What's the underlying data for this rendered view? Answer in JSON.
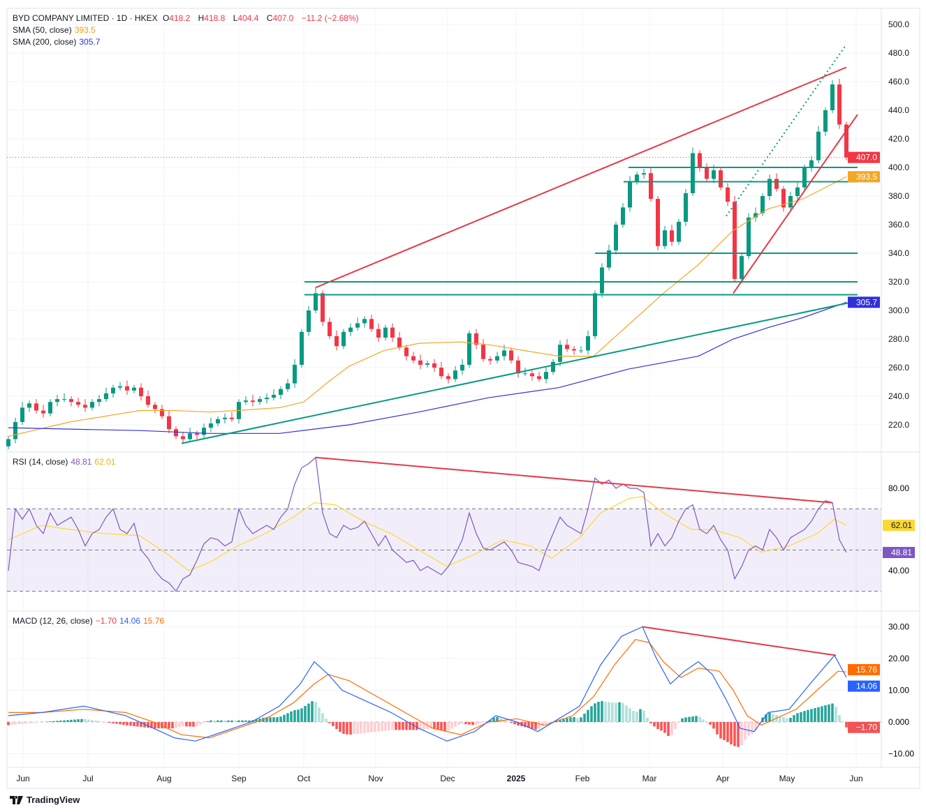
{
  "header": {
    "title": "BYD COMPANY LIMITED · 1D · HKEX",
    "o_label": "O",
    "o": "418.2",
    "h_label": "H",
    "h": "418.8",
    "l_label": "L",
    "l": "404.4",
    "c_label": "C",
    "c": "407.0",
    "change": "−11.2 (−2.68%)"
  },
  "sma50": {
    "label": "SMA (50, close)",
    "value": "393.5"
  },
  "sma200": {
    "label": "SMA (200, close)",
    "value": "305.7"
  },
  "rsi_legend": {
    "label": "RSI (14, close)",
    "value": "48.81",
    "signal": "62.01"
  },
  "macd_legend": {
    "label": "MACD (12, 26, close)",
    "hist": "−1.70",
    "macd": "14.06",
    "signal": "15.76"
  },
  "branding": "TradingView",
  "colors": {
    "up": "#089981",
    "down": "#f23645",
    "sma50": "#f5a623",
    "sma200": "#3131d8",
    "rsi": "#7e57c2",
    "rsi_signal": "#fdd835",
    "macd": "#2962ff",
    "macd_signal": "#ff6d00",
    "drawing_red": "#e53946",
    "drawing_green": "#089981"
  },
  "chart_data": [
    {
      "type": "candlestick",
      "title": "BYD COMPANY LIMITED · 1D · HKEX",
      "x_unit": "bar index",
      "x_ticks": [
        {
          "i": 2.1,
          "label": "Jun"
        },
        {
          "i": 11.4,
          "label": "Jul"
        },
        {
          "i": 22.3,
          "label": "Aug"
        },
        {
          "i": 33,
          "label": "Sep"
        },
        {
          "i": 42.3,
          "label": "Oct"
        },
        {
          "i": 52.6,
          "label": "Nov"
        },
        {
          "i": 62.9,
          "label": "Dec"
        },
        {
          "i": 72.7,
          "label": "2025"
        },
        {
          "i": 82.2,
          "label": "Feb"
        },
        {
          "i": 91.8,
          "label": "Mar"
        },
        {
          "i": 102.3,
          "label": "Apr"
        },
        {
          "i": 111.5,
          "label": "May"
        },
        {
          "i": 121.4,
          "label": "Jun"
        }
      ],
      "y_ticks": [
        "500.0",
        "480.0",
        "460.0",
        "440.0",
        "420.0",
        "400.0",
        "380.0",
        "360.0",
        "340.0",
        "320.0",
        "300.0",
        "280.0",
        "260.0",
        "240.0",
        "220.0"
      ],
      "ylim": [
        205,
        510
      ],
      "closes": [
        210,
        222,
        232,
        235,
        230,
        228,
        236,
        238,
        238,
        236,
        234,
        232,
        236,
        238,
        242,
        246,
        247,
        244,
        246,
        240,
        234,
        231,
        226,
        217,
        212,
        210,
        214,
        213,
        218,
        221,
        224,
        225,
        224,
        236,
        237,
        236,
        238,
        239,
        241,
        245,
        249,
        262,
        285,
        300,
        312,
        292,
        282,
        275,
        285,
        288,
        291,
        294,
        287,
        281,
        288,
        281,
        274,
        268,
        265,
        262,
        263,
        260,
        254,
        252,
        258,
        262,
        284,
        276,
        266,
        265,
        268,
        272,
        265,
        256,
        256,
        254,
        252,
        257,
        264,
        276,
        273,
        272,
        272,
        282,
        312,
        330,
        342,
        360,
        372,
        390,
        395,
        396,
        378,
        345,
        356,
        348,
        362,
        382,
        410,
        400,
        392,
        398,
        386,
        376,
        322,
        338,
        365,
        368,
        380,
        392,
        385,
        372,
        380,
        386,
        400,
        405,
        425,
        440,
        458,
        430,
        407
      ],
      "sma50": [
        [
          0,
          212
        ],
        [
          8.8,
          222
        ],
        [
          18.8,
          230
        ],
        [
          23.8,
          230
        ],
        [
          28.8,
          229
        ],
        [
          32.8,
          230
        ],
        [
          38.8,
          232
        ],
        [
          42.3,
          236
        ],
        [
          45.8,
          250
        ],
        [
          48.8,
          261
        ],
        [
          53.8,
          272
        ],
        [
          58.8,
          277
        ],
        [
          64.8,
          278
        ],
        [
          68.8,
          276
        ],
        [
          73.8,
          272
        ],
        [
          78.8,
          268
        ],
        [
          83.8,
          268
        ],
        [
          88.8,
          290
        ],
        [
          93.8,
          312
        ],
        [
          98.8,
          332
        ],
        [
          103.8,
          356
        ],
        [
          108.8,
          371
        ],
        [
          113.8,
          378
        ],
        [
          117.8,
          388
        ],
        [
          120,
          393.5
        ]
      ],
      "sma200": [
        [
          0,
          218
        ],
        [
          8.8,
          217
        ],
        [
          18.8,
          216
        ],
        [
          28.8,
          214
        ],
        [
          38.8,
          214
        ],
        [
          43.8,
          217
        ],
        [
          48.8,
          220
        ],
        [
          58.8,
          229
        ],
        [
          68.8,
          239
        ],
        [
          78.8,
          246
        ],
        [
          88.8,
          259
        ],
        [
          98.8,
          268
        ],
        [
          103.8,
          280
        ],
        [
          108.8,
          288
        ],
        [
          113.8,
          295
        ],
        [
          120,
          305.7
        ]
      ],
      "last_price": 407.0,
      "price_tags": [
        {
          "value": 407.0,
          "label": "407.0",
          "color": "#f23645"
        },
        {
          "value": 393.5,
          "label": "393.5",
          "color": "#f5a623"
        },
        {
          "value": 305.7,
          "label": "305.7",
          "color": "#3131d8"
        }
      ],
      "drawings": [
        {
          "kind": "trend",
          "color": "red",
          "from": [
            44,
            316
          ],
          "to": [
            120,
            470
          ]
        },
        {
          "kind": "trend",
          "color": "red",
          "from": [
            103.8,
            312
          ],
          "to": [
            121.6,
            437
          ]
        },
        {
          "kind": "trend-dotted",
          "color": "green",
          "from": [
            102.8,
            366
          ],
          "to": [
            120,
            486
          ]
        },
        {
          "kind": "trend",
          "color": "green",
          "from": [
            24.8,
            207
          ],
          "to": [
            122,
            307
          ]
        },
        {
          "kind": "horizontal",
          "color": "green",
          "from": [
            88.8,
            400
          ],
          "to": [
            121.6,
            400
          ]
        },
        {
          "kind": "horizontal",
          "color": "green",
          "from": [
            88.1,
            390
          ],
          "to": [
            121.6,
            390
          ]
        },
        {
          "kind": "horizontal",
          "color": "green",
          "from": [
            84,
            340
          ],
          "to": [
            121.6,
            340
          ]
        },
        {
          "kind": "horizontal",
          "color": "green",
          "from": [
            42.4,
            320
          ],
          "to": [
            121.6,
            320
          ]
        },
        {
          "kind": "horizontal",
          "color": "green",
          "from": [
            42.4,
            311
          ],
          "to": [
            121.6,
            311
          ]
        }
      ]
    },
    {
      "type": "line",
      "title": "RSI (14, close)",
      "ylim": [
        27,
        98
      ],
      "bands": [
        30,
        50,
        70
      ],
      "y_ticks": [
        "80.00",
        "40.00"
      ],
      "rsi": [
        40,
        70,
        65,
        70,
        62,
        58,
        68,
        62,
        64,
        66,
        60,
        52,
        58,
        60,
        66,
        70,
        60,
        58,
        63,
        50,
        46,
        40,
        36,
        34,
        30,
        36,
        38,
        45,
        53,
        56,
        55,
        52,
        54,
        70,
        62,
        58,
        60,
        62,
        60,
        66,
        70,
        82,
        90,
        92,
        95,
        68,
        58,
        56,
        62,
        60,
        61,
        64,
        58,
        52,
        57,
        50,
        47,
        44,
        45,
        40,
        42,
        40,
        38,
        42,
        48,
        55,
        68,
        58,
        51,
        50,
        52,
        54,
        50,
        44,
        43,
        42,
        40,
        50,
        58,
        66,
        62,
        60,
        58,
        70,
        85,
        82,
        84,
        80,
        82,
        80,
        80,
        78,
        52,
        58,
        52,
        56,
        64,
        70,
        72,
        60,
        58,
        62,
        55,
        50,
        36,
        42,
        50,
        52,
        50,
        60,
        56,
        50,
        56,
        58,
        60,
        64,
        70,
        74,
        73,
        55,
        48.81
      ],
      "signal": [
        [
          0,
          55
        ],
        [
          4.8,
          62
        ],
        [
          8.8,
          60
        ],
        [
          13.8,
          58
        ],
        [
          18.8,
          57
        ],
        [
          22.8,
          48
        ],
        [
          25.8,
          40
        ],
        [
          28.8,
          44
        ],
        [
          32.8,
          52
        ],
        [
          36.8,
          58
        ],
        [
          40.8,
          66
        ],
        [
          43.8,
          73
        ],
        [
          46.8,
          72
        ],
        [
          50.8,
          64
        ],
        [
          54.8,
          58
        ],
        [
          58.8,
          50
        ],
        [
          62.8,
          42
        ],
        [
          66.8,
          48
        ],
        [
          70.8,
          55
        ],
        [
          74.8,
          52
        ],
        [
          77.8,
          46
        ],
        [
          81.8,
          56
        ],
        [
          84.8,
          68
        ],
        [
          88.8,
          75
        ],
        [
          90.8,
          76
        ],
        [
          93.8,
          68
        ],
        [
          97.8,
          60
        ],
        [
          100.8,
          60
        ],
        [
          104.8,
          56
        ],
        [
          107.8,
          49
        ],
        [
          111.8,
          52
        ],
        [
          115.8,
          58
        ],
        [
          118.3,
          65
        ],
        [
          120,
          62.01
        ]
      ],
      "value_tags": [
        {
          "value": 62.01,
          "label": "62.01",
          "color": "#fdd835"
        },
        {
          "value": 48.81,
          "label": "48.81",
          "color": "#7e57c2"
        }
      ],
      "drawings": [
        {
          "kind": "trend",
          "color": "red",
          "from": [
            44,
            95
          ],
          "to": [
            118,
            73
          ]
        }
      ]
    },
    {
      "type": "line+bar",
      "title": "MACD (12, 26, close)",
      "ylim": [
        -12,
        32
      ],
      "y_ticks": [
        "30.00",
        "20.00",
        "10.00",
        "0.000",
        "−10.00"
      ],
      "macd": [
        [
          0,
          2
        ],
        [
          4.8,
          3
        ],
        [
          10.8,
          5
        ],
        [
          16.8,
          2
        ],
        [
          20.8,
          -2
        ],
        [
          23.8,
          -5
        ],
        [
          26.8,
          -6
        ],
        [
          30.8,
          -3
        ],
        [
          34.8,
          0
        ],
        [
          38.8,
          5
        ],
        [
          41.8,
          12
        ],
        [
          43.8,
          19
        ],
        [
          45.8,
          15
        ],
        [
          47.8,
          10
        ],
        [
          50.8,
          7
        ],
        [
          54.8,
          3
        ],
        [
          58.8,
          -2
        ],
        [
          62.8,
          -6
        ],
        [
          66.8,
          -3
        ],
        [
          69.8,
          2
        ],
        [
          72.8,
          0
        ],
        [
          75.8,
          -3
        ],
        [
          78.8,
          1
        ],
        [
          81.8,
          5
        ],
        [
          84.8,
          18
        ],
        [
          87.8,
          27
        ],
        [
          90.8,
          30
        ],
        [
          92.8,
          20
        ],
        [
          94.8,
          12
        ],
        [
          96.8,
          16
        ],
        [
          98.8,
          19
        ],
        [
          100.8,
          15
        ],
        [
          102.8,
          7
        ],
        [
          104.8,
          -2
        ],
        [
          106.8,
          -3
        ],
        [
          108.8,
          3
        ],
        [
          111.8,
          4
        ],
        [
          114.8,
          12
        ],
        [
          118.3,
          21
        ],
        [
          120,
          14.06
        ]
      ],
      "signal": [
        [
          0,
          3
        ],
        [
          4.8,
          3
        ],
        [
          10.8,
          4
        ],
        [
          16.8,
          3
        ],
        [
          20.8,
          0
        ],
        [
          24.8,
          -4
        ],
        [
          28.8,
          -5
        ],
        [
          32.8,
          -2
        ],
        [
          36.8,
          1
        ],
        [
          40.8,
          6
        ],
        [
          43.8,
          12
        ],
        [
          45.8,
          15
        ],
        [
          48.8,
          13
        ],
        [
          52.8,
          8
        ],
        [
          56.8,
          3
        ],
        [
          60.8,
          -2
        ],
        [
          64.8,
          -4
        ],
        [
          68.8,
          0
        ],
        [
          72.8,
          1
        ],
        [
          76.8,
          -1
        ],
        [
          80.8,
          2
        ],
        [
          83.8,
          8
        ],
        [
          86.8,
          18
        ],
        [
          89.8,
          26
        ],
        [
          91.8,
          25
        ],
        [
          93.8,
          19
        ],
        [
          96.3,
          14
        ],
        [
          98.8,
          17
        ],
        [
          101.8,
          16
        ],
        [
          103.8,
          10
        ],
        [
          105.8,
          2
        ],
        [
          107.8,
          -1
        ],
        [
          109.8,
          1
        ],
        [
          112.8,
          4
        ],
        [
          115.8,
          10
        ],
        [
          118.8,
          16
        ],
        [
          120,
          15.76
        ]
      ],
      "last_histogram": -1.7,
      "value_tags": [
        {
          "value": 16.5,
          "label": "15.76",
          "color": "#ff6d00"
        },
        {
          "value": 11.3,
          "label": "14.06",
          "color": "#2962ff"
        },
        {
          "value": -1.7,
          "label": "−1.70",
          "color": "#f05454"
        }
      ],
      "drawings": [
        {
          "kind": "trend",
          "color": "red",
          "from": [
            90.8,
            30
          ],
          "to": [
            118.5,
            21
          ]
        }
      ]
    }
  ]
}
